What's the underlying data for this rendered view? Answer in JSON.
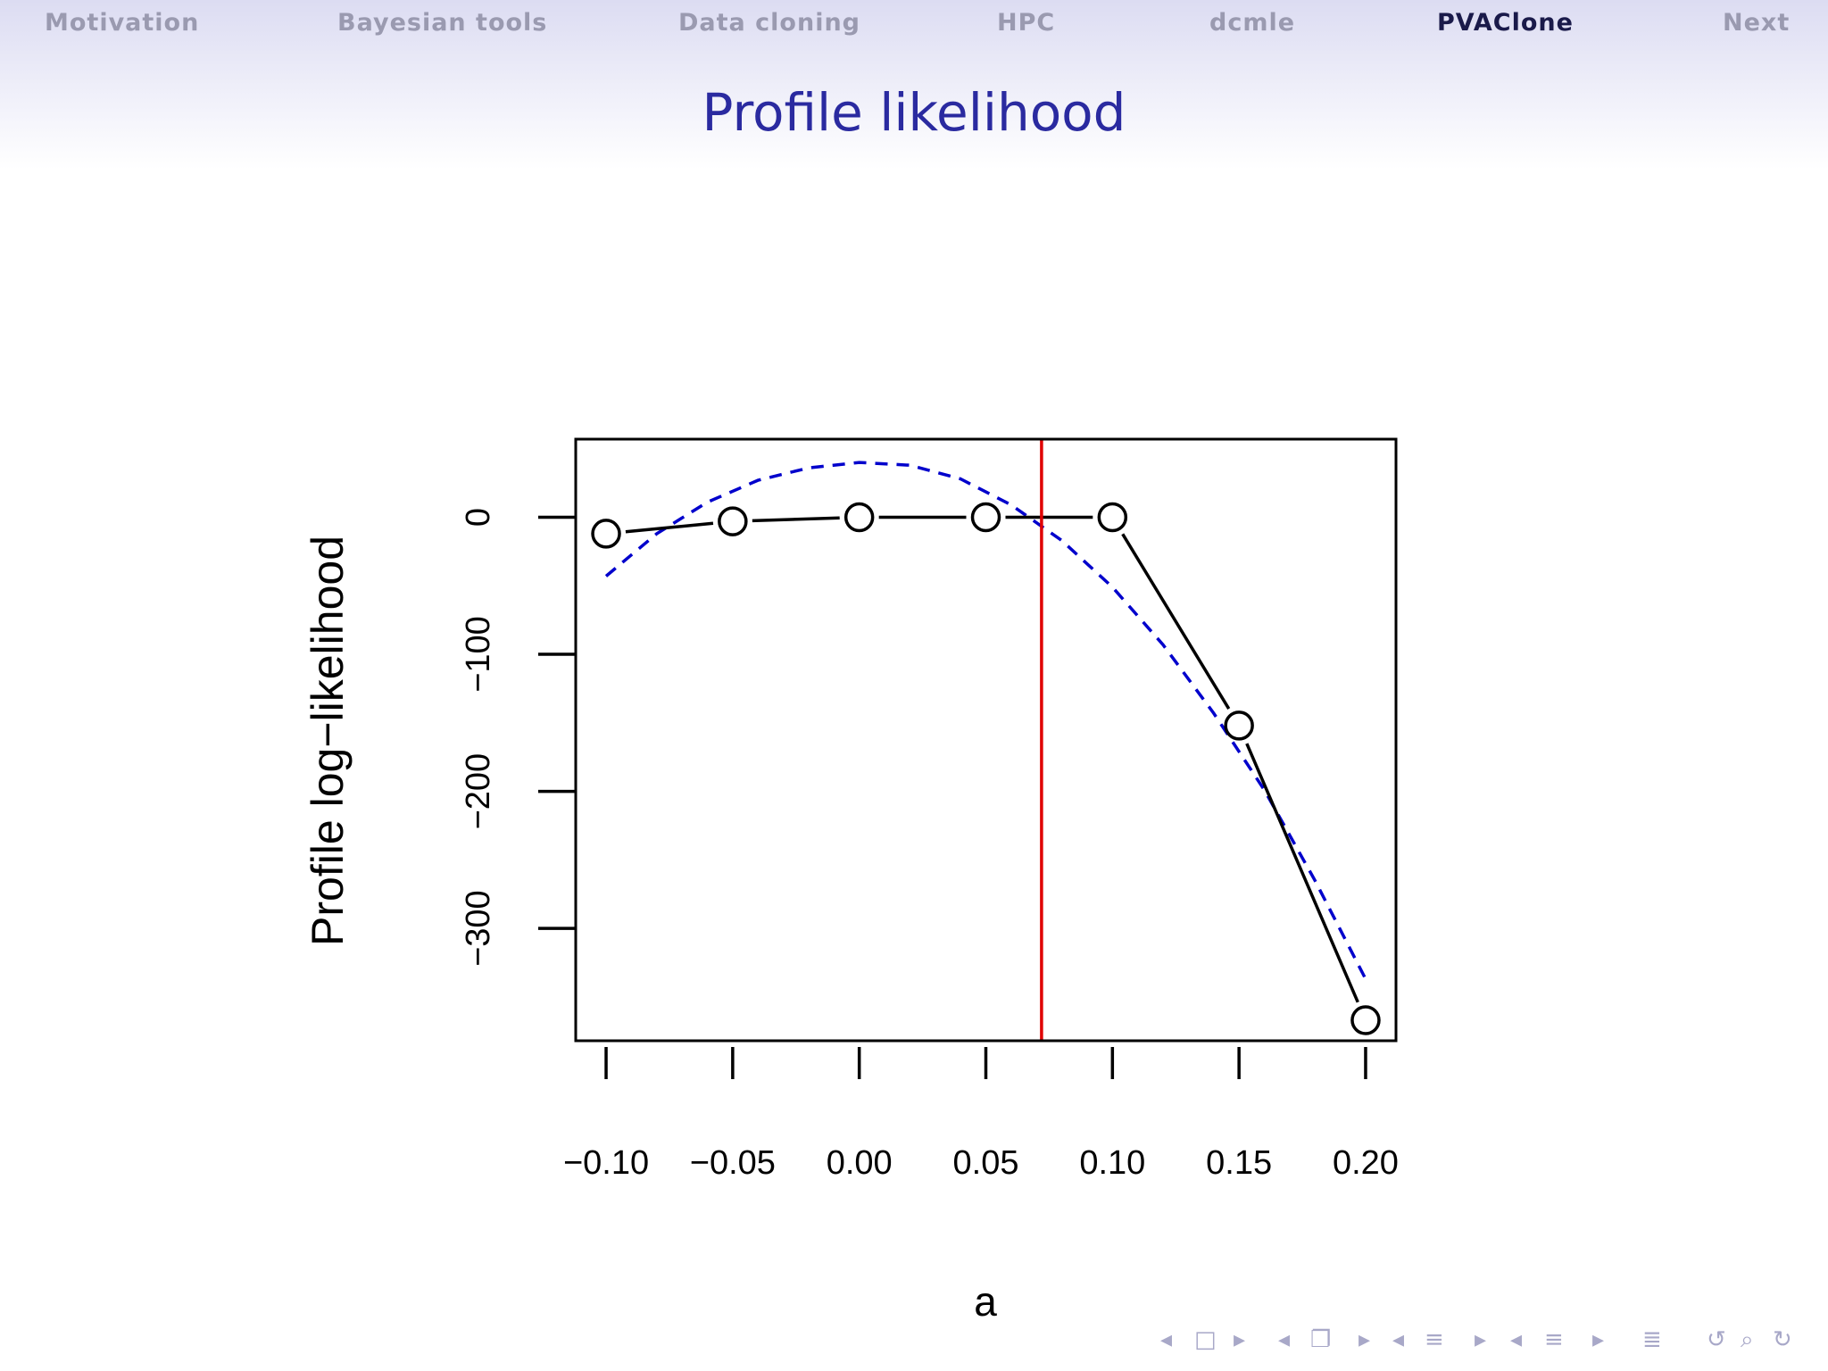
{
  "nav": {
    "items": [
      {
        "label": "Motivation",
        "active": false
      },
      {
        "label": "Bayesian tools",
        "active": false
      },
      {
        "label": "Data cloning",
        "active": false
      },
      {
        "label": "HPC",
        "active": false
      },
      {
        "label": "dcmle",
        "active": false
      },
      {
        "label": "PVAClone",
        "active": true
      },
      {
        "label": "Next",
        "active": false
      }
    ]
  },
  "slide": {
    "title": "Profile likelihood"
  },
  "colors": {
    "title": "#2a2aa0",
    "nav_inactive": "#9a9ab0",
    "nav_active": "#1a1a4a",
    "fit_curve": "#0000cc",
    "vline": "#e00000"
  },
  "chart_data": {
    "type": "line",
    "xlabel": "a",
    "ylabel": "Profile log−likelihood",
    "xlim": [
      -0.112,
      0.212
    ],
    "ylim": [
      -382,
      57
    ],
    "x_ticks": [
      -0.1,
      -0.05,
      0.0,
      0.05,
      0.1,
      0.15,
      0.2
    ],
    "x_tick_labels": [
      "−0.10",
      "−0.05",
      "0.00",
      "0.05",
      "0.10",
      "0.15",
      "0.20"
    ],
    "y_ticks": [
      0,
      -100,
      -200,
      -300
    ],
    "y_tick_labels": [
      "0",
      "−100",
      "−200",
      "−300"
    ],
    "grid": false,
    "series": [
      {
        "style": "points-and-lines",
        "marker": "open-circle",
        "x": [
          -0.1,
          -0.05,
          0.0,
          0.05,
          0.1,
          0.15,
          0.2
        ],
        "y": [
          -12,
          -3,
          0,
          0,
          0,
          -152,
          -367
        ]
      },
      {
        "style": "dashed",
        "note": "quadratic approximation",
        "x": [
          -0.1,
          -0.08,
          -0.06,
          -0.04,
          -0.02,
          0.0,
          0.02,
          0.04,
          0.06,
          0.08,
          0.1,
          0.12,
          0.14,
          0.16,
          0.18,
          0.2
        ],
        "y": [
          -43,
          -12,
          11,
          27,
          36,
          40,
          38,
          28,
          9,
          -17,
          -51,
          -93,
          -143,
          -199,
          -265,
          -337
        ]
      }
    ],
    "vline": {
      "x": 0.072
    }
  },
  "controls": {
    "icons": [
      "arrow-left-icon",
      "frame-icon",
      "arrow-right-icon",
      "arrow-left-icon",
      "subsection-icon",
      "arrow-right-icon",
      "arrow-left-icon",
      "section-icon",
      "arrow-right-icon",
      "arrow-left-icon",
      "presentation-icon",
      "arrow-right-icon",
      "align-icon",
      "undo-icon",
      "search-icon",
      "redo-icon"
    ]
  }
}
